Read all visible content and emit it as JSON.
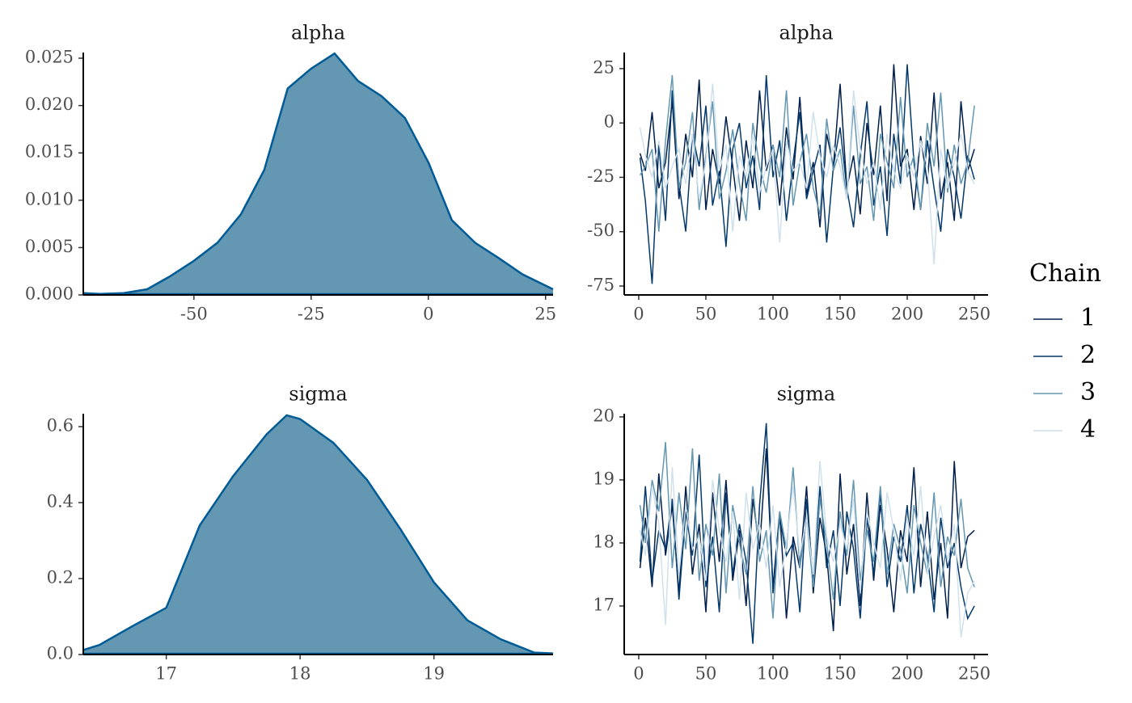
{
  "chart_data": [
    {
      "type": "density",
      "title": "alpha",
      "fill": "#6497b1",
      "color": "#005b96",
      "x": [
        -73.6,
        -70,
        -65,
        -60,
        -55,
        -50,
        -45,
        -40,
        -35,
        -30,
        -25,
        -20,
        -15,
        -10,
        -5,
        0,
        5,
        10,
        15,
        20,
        26.6
      ],
      "values": [
        0.0002,
        0.0001,
        0.0002,
        0.0006,
        0.002,
        0.0036,
        0.0055,
        0.0085,
        0.0132,
        0.0218,
        0.0239,
        0.0255,
        0.0226,
        0.021,
        0.0187,
        0.014,
        0.0079,
        0.0055,
        0.0039,
        0.0022,
        0.0006
      ],
      "xlim": [
        -73.6,
        26.6
      ],
      "ylim": [
        0,
        0.0256
      ],
      "xticks": [
        -50,
        -25,
        0,
        25
      ],
      "yticks": [
        {
          "value": 0,
          "label": "0.000"
        },
        0.005,
        {
          "value": 0.01,
          "label": "0.010"
        },
        0.015,
        {
          "value": 0.02,
          "label": "0.020"
        },
        0.025
      ]
    },
    {
      "type": "trace",
      "title": "alpha",
      "legend_title": "Chain",
      "x": [
        1,
        5,
        10,
        15,
        20,
        25,
        30,
        35,
        40,
        45,
        50,
        55,
        60,
        65,
        70,
        75,
        80,
        85,
        90,
        95,
        100,
        105,
        110,
        115,
        120,
        125,
        130,
        135,
        140,
        145,
        150,
        155,
        160,
        165,
        170,
        175,
        180,
        185,
        190,
        195,
        200,
        205,
        210,
        215,
        220,
        225,
        230,
        235,
        240,
        245,
        250
      ],
      "xlim": [
        -10.8,
        260.2
      ],
      "ylim": [
        -79.1,
        32.4
      ],
      "xticks": [
        0,
        50,
        100,
        150,
        200,
        250
      ],
      "yticks": [
        -75,
        -50,
        -25,
        0,
        25
      ],
      "series": [
        {
          "name": "1",
          "color": "#011f4b",
          "values": [
            -14,
            -22,
            5,
            -30,
            -18,
            10,
            -35,
            -5,
            -25,
            20,
            -40,
            -12,
            -28,
            3,
            -20,
            -45,
            -8,
            -30,
            15,
            -22,
            -10,
            -38,
            -2,
            -26,
            12,
            -33,
            -18,
            -48,
            -5,
            -20,
            18,
            -30,
            -15,
            -42,
            0,
            -24,
            8,
            -36,
            27,
            -20,
            -12,
            -40,
            -6,
            -28,
            14,
            -35,
            -18,
            -45,
            10,
            -22,
            -12
          ]
        },
        {
          "name": "2",
          "color": "#03396c",
          "values": [
            -16,
            -36,
            -74,
            -10,
            -45,
            15,
            -28,
            -50,
            -5,
            -20,
            8,
            -38,
            -22,
            -57,
            -12,
            0,
            -30,
            -15,
            -40,
            22,
            -25,
            -8,
            -45,
            -18,
            5,
            -35,
            -22,
            -10,
            -55,
            -20,
            -2,
            -30,
            -48,
            -15,
            10,
            -38,
            -20,
            -52,
            -5,
            -28,
            27,
            -18,
            -40,
            -8,
            -30,
            -50,
            -12,
            -25,
            -44,
            -15,
            -26
          ]
        },
        {
          "name": "3",
          "color": "#6497b1",
          "values": [
            -24,
            -20,
            -12,
            -50,
            -8,
            22,
            -30,
            -18,
            5,
            -40,
            -15,
            10,
            -35,
            -22,
            -3,
            -28,
            -45,
            0,
            -20,
            -32,
            -10,
            -25,
            15,
            -38,
            -18,
            -5,
            -30,
            -42,
            2,
            -22,
            -12,
            -35,
            8,
            -28,
            -20,
            -45,
            -5,
            -18,
            -30,
            12,
            -25,
            -15,
            -40,
            0,
            -20,
            14,
            -32,
            -10,
            -28,
            -18,
            8
          ]
        },
        {
          "name": "4",
          "color": "#d1e1ec",
          "values": [
            -2,
            -15,
            -25,
            -8,
            -30,
            -20,
            -12,
            -28,
            -5,
            -35,
            -18,
            18,
            -22,
            -10,
            -50,
            -15,
            -25,
            -5,
            -32,
            -20,
            -12,
            -55,
            -8,
            -22,
            -18,
            -30,
            5,
            -15,
            -25,
            -10,
            -20,
            -35,
            15,
            -12,
            -28,
            -18,
            -40,
            -5,
            -22,
            -30,
            -15,
            -25,
            -8,
            -20,
            -65,
            -12,
            -30,
            -18,
            -5,
            -22,
            -28
          ]
        }
      ]
    },
    {
      "type": "density",
      "title": "sigma",
      "fill": "#6497b1",
      "color": "#005b96",
      "x": [
        16.38,
        16.5,
        16.75,
        17,
        17.25,
        17.5,
        17.75,
        17.9,
        18,
        18.25,
        18.5,
        18.75,
        19,
        19.25,
        19.5,
        19.75,
        19.89
      ],
      "values": [
        0.012,
        0.025,
        0.075,
        0.123,
        0.34,
        0.47,
        0.58,
        0.63,
        0.62,
        0.557,
        0.46,
        0.33,
        0.19,
        0.09,
        0.04,
        0.005,
        0.003
      ],
      "xlim": [
        16.38,
        19.89
      ],
      "ylim": [
        0,
        0.634
      ],
      "xticks": [
        17,
        18,
        19
      ],
      "yticks": [
        {
          "value": 0,
          "label": "0.0"
        },
        0.2,
        0.4,
        0.6
      ]
    },
    {
      "type": "trace",
      "title": "sigma",
      "x": [
        1,
        5,
        10,
        15,
        20,
        25,
        30,
        35,
        40,
        45,
        50,
        55,
        60,
        65,
        70,
        75,
        80,
        85,
        90,
        95,
        100,
        105,
        110,
        115,
        120,
        125,
        130,
        135,
        140,
        145,
        150,
        155,
        160,
        165,
        170,
        175,
        180,
        185,
        190,
        195,
        200,
        205,
        210,
        215,
        220,
        225,
        230,
        235,
        240,
        245,
        250
      ],
      "xlim": [
        -10.8,
        260.2
      ],
      "ylim": [
        16.23,
        20.05
      ],
      "xticks": [
        0,
        50,
        100,
        150,
        200,
        250
      ],
      "yticks": [
        17,
        18,
        19,
        20
      ],
      "series": [
        {
          "name": "1",
          "color": "#011f4b",
          "values": [
            17.6,
            18.4,
            17.3,
            19.1,
            17.8,
            18.6,
            17.2,
            18.9,
            17.5,
            18.3,
            16.9,
            18.8,
            17.7,
            19.0,
            17.4,
            18.2,
            17.0,
            18.7,
            17.9,
            19.5,
            17.3,
            18.5,
            16.8,
            18.1,
            17.6,
            18.9,
            17.2,
            18.4,
            17.8,
            16.6,
            19.1,
            17.5,
            18.3,
            17.0,
            18.8,
            17.4,
            18.6,
            17.9,
            16.9,
            18.2,
            17.7,
            19.2,
            17.3,
            18.5,
            17.1,
            18.0,
            16.8,
            19.3,
            17.6,
            18.1,
            18.2
          ]
        },
        {
          "name": "2",
          "color": "#03396c",
          "values": [
            17.7,
            18.9,
            17.4,
            18.2,
            17.9,
            18.7,
            17.1,
            18.5,
            17.8,
            19.4,
            17.3,
            18.1,
            16.9,
            18.8,
            17.5,
            18.3,
            17.7,
            16.4,
            18.6,
            19.9,
            17.2,
            18.4,
            17.8,
            18.0,
            16.9,
            18.7,
            17.4,
            18.9,
            17.6,
            18.2,
            17.0,
            18.5,
            17.9,
            16.8,
            18.4,
            17.5,
            18.8,
            17.3,
            18.1,
            17.7,
            18.6,
            17.2,
            18.3,
            17.8,
            16.9,
            18.4,
            17.6,
            18.0,
            17.3,
            16.8,
            17.0
          ]
        },
        {
          "name": "3",
          "color": "#6497b1",
          "values": [
            18.6,
            18.0,
            19.0,
            18.5,
            19.6,
            17.6,
            18.8,
            17.9,
            19.5,
            17.4,
            18.3,
            17.8,
            19.1,
            17.2,
            18.6,
            18.0,
            17.5,
            18.9,
            17.7,
            18.2,
            16.8,
            18.5,
            17.9,
            19.2,
            17.6,
            18.4,
            17.3,
            18.7,
            18.0,
            17.1,
            18.5,
            17.8,
            19.0,
            17.4,
            18.2,
            17.7,
            18.9,
            17.5,
            18.3,
            17.9,
            17.2,
            18.6,
            18.0,
            17.5,
            18.8,
            17.3,
            18.1,
            17.8,
            18.7,
            17.6,
            17.3
          ]
        },
        {
          "name": "4",
          "color": "#d1e1ec",
          "values": [
            18.2,
            17.8,
            18.9,
            18.3,
            16.7,
            19.2,
            17.5,
            18.6,
            17.9,
            18.1,
            17.4,
            19.0,
            18.2,
            17.7,
            18.5,
            17.1,
            18.8,
            17.9,
            18.3,
            17.6,
            18.6,
            17.3,
            18.0,
            18.9,
            17.8,
            18.4,
            17.5,
            19.3,
            18.1,
            17.7,
            18.3,
            17.9,
            18.7,
            17.2,
            18.5,
            18.0,
            17.6,
            18.8,
            18.2,
            17.4,
            18.4,
            17.8,
            18.9,
            17.5,
            18.1,
            18.6,
            17.7,
            18.3,
            16.5,
            17.2,
            17.4
          ]
        }
      ]
    }
  ]
}
